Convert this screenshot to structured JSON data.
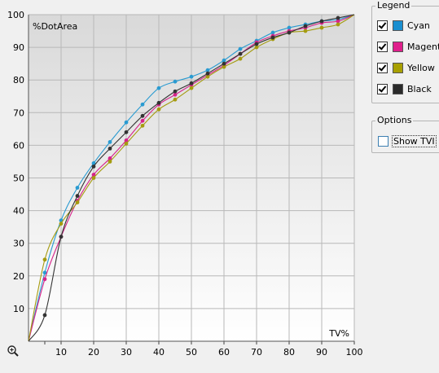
{
  "chart_data": {
    "type": "line",
    "xlabel": "TV%",
    "ylabel": "%DotArea",
    "xlim": [
      0,
      100
    ],
    "ylim": [
      0,
      100
    ],
    "xticks": [
      10,
      20,
      30,
      40,
      50,
      60,
      70,
      80,
      90,
      100
    ],
    "yticks": [
      10,
      20,
      30,
      40,
      50,
      60,
      70,
      80,
      90,
      100
    ],
    "grid": true,
    "series": [
      {
        "name": "Cyan",
        "color": "#2a9bd1",
        "x": [
          0,
          5,
          10,
          15,
          20,
          25,
          30,
          35,
          40,
          45,
          50,
          55,
          60,
          65,
          70,
          75,
          80,
          85,
          90,
          95,
          100
        ],
        "y": [
          0,
          21,
          37,
          47,
          54.5,
          61,
          67,
          72.5,
          77.5,
          79.5,
          81,
          83,
          86,
          89.5,
          92,
          94.5,
          96,
          97,
          98,
          98.5,
          100
        ]
      },
      {
        "name": "Magenta",
        "color": "#d6248a",
        "x": [
          0,
          5,
          10,
          15,
          20,
          25,
          30,
          35,
          40,
          45,
          50,
          55,
          60,
          65,
          70,
          75,
          80,
          85,
          90,
          95,
          100
        ],
        "y": [
          0,
          19,
          32,
          43,
          51,
          56,
          61.5,
          67.5,
          72.5,
          75.5,
          78.5,
          81.5,
          84.5,
          88,
          91.5,
          93.5,
          95,
          96,
          97.5,
          98,
          100
        ]
      },
      {
        "name": "Yellow",
        "color": "#a59b10",
        "x": [
          0,
          5,
          10,
          15,
          20,
          25,
          30,
          35,
          40,
          45,
          50,
          55,
          60,
          65,
          70,
          75,
          80,
          85,
          90,
          95,
          100
        ],
        "y": [
          0,
          25,
          36,
          42.5,
          50,
          55,
          60.5,
          66,
          71,
          74,
          77.5,
          81,
          84,
          86.5,
          90,
          92.5,
          94.5,
          95,
          96,
          97,
          100
        ]
      },
      {
        "name": "Black",
        "color": "#333333",
        "x": [
          0,
          5,
          10,
          15,
          20,
          25,
          30,
          35,
          40,
          45,
          50,
          55,
          60,
          65,
          70,
          75,
          80,
          85,
          90,
          95,
          100
        ],
        "y": [
          0,
          8,
          32,
          44.5,
          53.5,
          59,
          64,
          69,
          73,
          76.5,
          79,
          82,
          85,
          88,
          91,
          93,
          94.5,
          96.5,
          98,
          99,
          100
        ]
      }
    ]
  },
  "legend": {
    "title": "Legend",
    "items": [
      {
        "label": "Cyan",
        "color": "#1a8fd0",
        "checked": true
      },
      {
        "label": "Magenta",
        "color": "#e0208c",
        "checked": true
      },
      {
        "label": "Yellow",
        "color": "#a8a000",
        "checked": true
      },
      {
        "label": "Black",
        "color": "#2a2a2a",
        "checked": true
      }
    ]
  },
  "options": {
    "title": "Options",
    "show_tvi_label": "Show TVI",
    "show_tvi_checked": false
  },
  "zoom_icon": "magnifier-plus-icon"
}
